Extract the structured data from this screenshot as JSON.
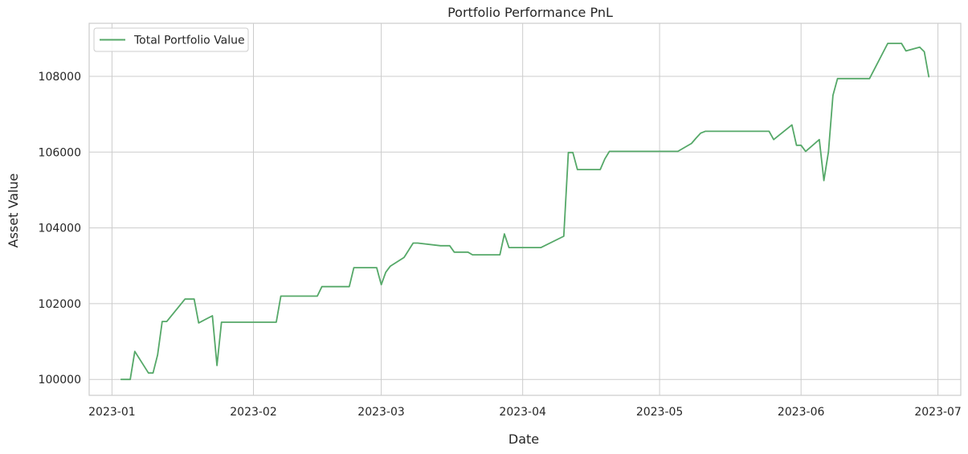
{
  "chart_data": {
    "type": "line",
    "title": "Portfolio Performance PnL",
    "xlabel": "Date",
    "ylabel": "Asset Value",
    "grid": true,
    "legend_position": "top-left",
    "x_range": [
      "2022-12-27",
      "2023-07-06"
    ],
    "ylim": [
      99580,
      109400
    ],
    "x_ticks": [
      {
        "date": "2023-01-01",
        "label": "2023-01"
      },
      {
        "date": "2023-02-01",
        "label": "2023-02"
      },
      {
        "date": "2023-03-01",
        "label": "2023-03"
      },
      {
        "date": "2023-04-01",
        "label": "2023-04"
      },
      {
        "date": "2023-05-01",
        "label": "2023-05"
      },
      {
        "date": "2023-06-01",
        "label": "2023-06"
      },
      {
        "date": "2023-07-01",
        "label": "2023-07"
      }
    ],
    "y_ticks": [
      {
        "value": 100000,
        "label": "100000"
      },
      {
        "value": 102000,
        "label": "102000"
      },
      {
        "value": 104000,
        "label": "104000"
      },
      {
        "value": 106000,
        "label": "106000"
      },
      {
        "value": 108000,
        "label": "108000"
      }
    ],
    "series": [
      {
        "name": "Total Portfolio Value",
        "color": "#55a868",
        "x": [
          "2023-01-03",
          "2023-01-05",
          "2023-01-06",
          "2023-01-09",
          "2023-01-10",
          "2023-01-11",
          "2023-01-12",
          "2023-01-13",
          "2023-01-17",
          "2023-01-19",
          "2023-01-20",
          "2023-01-23",
          "2023-01-24",
          "2023-01-25",
          "2023-01-27",
          "2023-02-06",
          "2023-02-07",
          "2023-02-15",
          "2023-02-16",
          "2023-02-22",
          "2023-02-23",
          "2023-02-28",
          "2023-03-01",
          "2023-03-02",
          "2023-03-03",
          "2023-03-06",
          "2023-03-08",
          "2023-03-09",
          "2023-03-14",
          "2023-03-16",
          "2023-03-17",
          "2023-03-20",
          "2023-03-21",
          "2023-03-27",
          "2023-03-28",
          "2023-03-29",
          "2023-03-30",
          "2023-04-05",
          "2023-04-10",
          "2023-04-11",
          "2023-04-12",
          "2023-04-13",
          "2023-04-18",
          "2023-04-19",
          "2023-04-20",
          "2023-05-04",
          "2023-05-05",
          "2023-05-08",
          "2023-05-09",
          "2023-05-10",
          "2023-05-11",
          "2023-05-12",
          "2023-05-25",
          "2023-05-26",
          "2023-05-30",
          "2023-05-31",
          "2023-06-01",
          "2023-06-02",
          "2023-06-05",
          "2023-06-06",
          "2023-06-07",
          "2023-06-08",
          "2023-06-09",
          "2023-06-16",
          "2023-06-20",
          "2023-06-23",
          "2023-06-24",
          "2023-06-27",
          "2023-06-28",
          "2023-06-29"
        ],
        "values": [
          100000,
          100000,
          100740,
          100170,
          100170,
          100650,
          101530,
          101530,
          102120,
          102120,
          101490,
          101680,
          100370,
          101510,
          101510,
          101510,
          102200,
          102200,
          102450,
          102450,
          102950,
          102950,
          102500,
          102830,
          102990,
          103220,
          103600,
          103600,
          103530,
          103530,
          103360,
          103360,
          103290,
          103290,
          103840,
          103480,
          103480,
          103480,
          103780,
          105990,
          105990,
          105540,
          105540,
          105820,
          106020,
          106020,
          106020,
          106230,
          106370,
          106500,
          106550,
          106550,
          106550,
          106330,
          106720,
          106180,
          106180,
          106020,
          106330,
          105250,
          106010,
          107500,
          107940,
          107940,
          108870,
          108870,
          108670,
          108770,
          108650,
          107990
        ]
      }
    ]
  }
}
